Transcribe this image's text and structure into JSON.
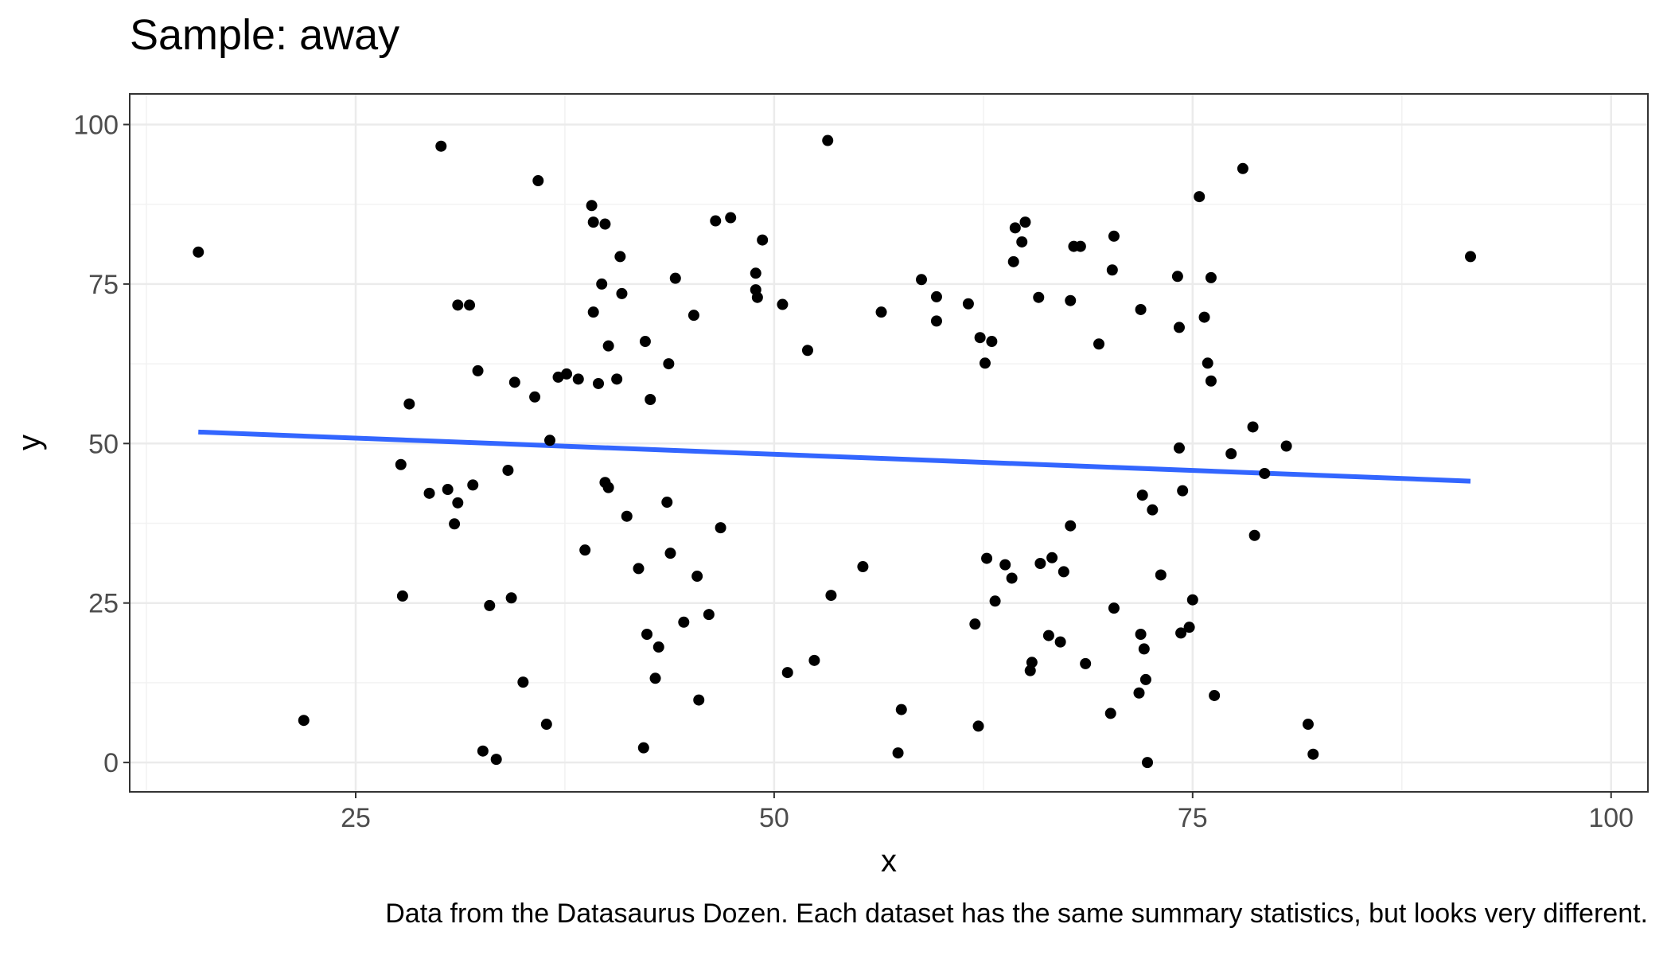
{
  "chart_data": {
    "type": "scatter",
    "title": "Sample: away",
    "xlabel": "x",
    "ylabel": "y",
    "caption": "Data from the Datasaurus Dozen. Each dataset has the same summary statistics, but looks very different.",
    "xlim": [
      11.5,
      102.2
    ],
    "ylim": [
      -4.6,
      104.8
    ],
    "x_ticks": [
      25,
      50,
      75,
      100
    ],
    "y_ticks": [
      0,
      25,
      50,
      75,
      100
    ],
    "x_tick_labels": [
      "25",
      "50",
      "75",
      "100"
    ],
    "y_tick_labels": [
      "0",
      "25",
      "50",
      "75",
      "100"
    ],
    "grid": true,
    "legend": "none",
    "colors": {
      "points": "#000000",
      "trend_line": "#3366FF",
      "grid_major": "#EBEBEB",
      "grid_minor": "#F2F2F2",
      "panel_border": "#333333",
      "tick_label": "#4D4D4D"
    },
    "trend_line": {
      "type": "linear",
      "x": [
        15.6,
        91.6
      ],
      "y": [
        51.8,
        44.1
      ]
    },
    "points": [
      [
        15.6,
        80.0
      ],
      [
        21.9,
        6.6
      ],
      [
        27.7,
        46.7
      ],
      [
        27.8,
        26.1
      ],
      [
        28.2,
        56.2
      ],
      [
        29.4,
        42.2
      ],
      [
        30.1,
        96.6
      ],
      [
        30.5,
        42.8
      ],
      [
        30.9,
        37.4
      ],
      [
        31.1,
        71.7
      ],
      [
        31.1,
        40.7
      ],
      [
        31.8,
        71.7
      ],
      [
        32.0,
        43.5
      ],
      [
        32.3,
        61.4
      ],
      [
        32.6,
        1.8
      ],
      [
        33.0,
        24.6
      ],
      [
        33.4,
        0.5
      ],
      [
        34.1,
        45.8
      ],
      [
        34.3,
        25.8
      ],
      [
        34.5,
        59.6
      ],
      [
        35.0,
        12.6
      ],
      [
        35.7,
        57.3
      ],
      [
        35.9,
        91.2
      ],
      [
        36.4,
        6.0
      ],
      [
        36.6,
        50.5
      ],
      [
        37.1,
        60.4
      ],
      [
        37.6,
        60.9
      ],
      [
        38.3,
        60.1
      ],
      [
        38.7,
        33.3
      ],
      [
        39.1,
        87.3
      ],
      [
        39.2,
        70.6
      ],
      [
        39.2,
        84.7
      ],
      [
        39.5,
        59.4
      ],
      [
        39.7,
        75.0
      ],
      [
        39.9,
        84.4
      ],
      [
        39.9,
        43.9
      ],
      [
        40.1,
        65.3
      ],
      [
        40.1,
        43.1
      ],
      [
        40.6,
        60.1
      ],
      [
        40.8,
        79.3
      ],
      [
        40.9,
        73.5
      ],
      [
        41.2,
        38.6
      ],
      [
        41.9,
        30.4
      ],
      [
        42.2,
        2.3
      ],
      [
        42.3,
        66.0
      ],
      [
        42.4,
        20.1
      ],
      [
        42.6,
        56.9
      ],
      [
        42.9,
        13.2
      ],
      [
        43.1,
        18.1
      ],
      [
        43.6,
        40.8
      ],
      [
        43.7,
        62.5
      ],
      [
        43.8,
        32.8
      ],
      [
        44.1,
        75.9
      ],
      [
        44.6,
        22.0
      ],
      [
        45.2,
        70.1
      ],
      [
        45.4,
        29.2
      ],
      [
        45.5,
        9.8
      ],
      [
        46.1,
        23.2
      ],
      [
        46.5,
        84.9
      ],
      [
        46.8,
        36.8
      ],
      [
        47.4,
        85.4
      ],
      [
        48.9,
        76.7
      ],
      [
        48.9,
        74.1
      ],
      [
        49.0,
        72.9
      ],
      [
        49.3,
        81.9
      ],
      [
        50.5,
        71.8
      ],
      [
        50.8,
        14.1
      ],
      [
        52.0,
        64.6
      ],
      [
        52.4,
        16.0
      ],
      [
        53.2,
        97.5
      ],
      [
        53.4,
        26.2
      ],
      [
        55.3,
        30.7
      ],
      [
        56.4,
        70.6
      ],
      [
        57.4,
        1.5
      ],
      [
        57.6,
        8.3
      ],
      [
        58.8,
        75.7
      ],
      [
        59.7,
        73.0
      ],
      [
        59.7,
        69.2
      ],
      [
        61.6,
        71.9
      ],
      [
        62.0,
        21.7
      ],
      [
        62.2,
        5.7
      ],
      [
        62.3,
        66.6
      ],
      [
        62.6,
        62.6
      ],
      [
        62.7,
        32.0
      ],
      [
        63.0,
        66.0
      ],
      [
        63.2,
        25.3
      ],
      [
        63.8,
        31.0
      ],
      [
        64.2,
        28.9
      ],
      [
        64.3,
        78.5
      ],
      [
        64.4,
        83.8
      ],
      [
        64.8,
        81.6
      ],
      [
        65.0,
        84.7
      ],
      [
        65.3,
        14.4
      ],
      [
        65.4,
        15.7
      ],
      [
        65.8,
        72.9
      ],
      [
        65.9,
        31.2
      ],
      [
        66.4,
        19.9
      ],
      [
        66.6,
        32.1
      ],
      [
        67.1,
        18.9
      ],
      [
        67.3,
        29.9
      ],
      [
        67.7,
        37.1
      ],
      [
        67.7,
        72.4
      ],
      [
        67.9,
        80.9
      ],
      [
        68.3,
        80.9
      ],
      [
        68.6,
        15.5
      ],
      [
        69.4,
        65.6
      ],
      [
        70.1,
        7.7
      ],
      [
        70.2,
        77.2
      ],
      [
        70.3,
        24.2
      ],
      [
        70.3,
        82.5
      ],
      [
        71.8,
        10.9
      ],
      [
        71.9,
        71.0
      ],
      [
        71.9,
        20.1
      ],
      [
        72.0,
        41.9
      ],
      [
        72.1,
        17.8
      ],
      [
        72.2,
        13.0
      ],
      [
        72.3,
        0.0
      ],
      [
        72.6,
        39.6
      ],
      [
        73.1,
        29.4
      ],
      [
        74.1,
        76.2
      ],
      [
        74.2,
        49.3
      ],
      [
        74.2,
        68.2
      ],
      [
        74.3,
        20.3
      ],
      [
        74.4,
        42.6
      ],
      [
        74.8,
        21.2
      ],
      [
        75.0,
        25.5
      ],
      [
        75.4,
        88.7
      ],
      [
        75.7,
        69.8
      ],
      [
        75.9,
        62.6
      ],
      [
        76.1,
        59.8
      ],
      [
        76.1,
        76.0
      ],
      [
        76.3,
        10.5
      ],
      [
        77.3,
        48.4
      ],
      [
        78.0,
        93.1
      ],
      [
        78.6,
        52.6
      ],
      [
        78.7,
        35.6
      ],
      [
        79.3,
        45.3
      ],
      [
        80.6,
        49.6
      ],
      [
        81.9,
        6.0
      ],
      [
        82.2,
        1.3
      ],
      [
        91.6,
        79.3
      ]
    ]
  }
}
